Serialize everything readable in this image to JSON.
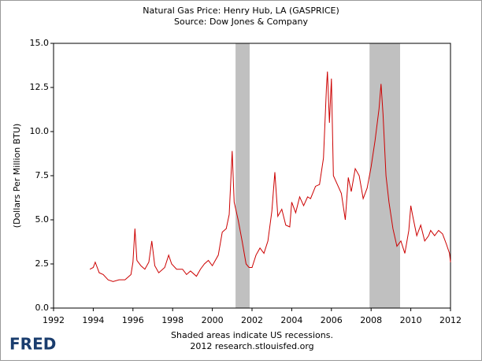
{
  "chart_data": {
    "type": "line",
    "title": "Natural Gas Price: Henry Hub, LA (GASPRICE)",
    "subtitle": "Source: Dow Jones & Company",
    "y_label": "(Dollars Per Million BTU)",
    "note": "Shaded areas indicate US recessions.",
    "credit": "2012 research.stlouisfed.org",
    "logo": "FRED",
    "recessions": [
      [
        2001.17,
        2001.88
      ],
      [
        2007.92,
        2009.46
      ]
    ],
    "recession_color": "#c0c0c0",
    "xlim": [
      1992,
      2012
    ],
    "xticks": [
      1992,
      1994,
      1996,
      1998,
      2000,
      2002,
      2004,
      2006,
      2008,
      2010,
      2012
    ],
    "ylim": [
      0,
      15
    ],
    "yticks": [
      {
        "value": 0,
        "label": "0.0"
      },
      {
        "value": 2.5,
        "label": "2.5"
      },
      {
        "value": 5,
        "label": "5.0"
      },
      {
        "value": 7.5,
        "label": "7.5"
      },
      {
        "value": 10,
        "label": "10.0"
      },
      {
        "value": 12.5,
        "label": "12.5"
      },
      {
        "value": 15,
        "label": "15.0"
      }
    ],
    "grid": false,
    "x": [
      1993.83,
      1994.0,
      1994.1,
      1994.3,
      1994.5,
      1994.75,
      1995.0,
      1995.3,
      1995.6,
      1995.9,
      1996.0,
      1996.1,
      1996.2,
      1996.4,
      1996.6,
      1996.8,
      1996.95,
      1997.1,
      1997.3,
      1997.6,
      1997.8,
      1997.95,
      1998.2,
      1998.5,
      1998.7,
      1998.9,
      1999.2,
      1999.4,
      1999.6,
      1999.8,
      2000.0,
      2000.3,
      2000.5,
      2000.7,
      2000.85,
      2001.0,
      2001.1,
      2001.3,
      2001.5,
      2001.7,
      2001.85,
      2002.0,
      2002.2,
      2002.4,
      2002.6,
      2002.8,
      2003.0,
      2003.15,
      2003.3,
      2003.5,
      2003.7,
      2003.9,
      2004.0,
      2004.2,
      2004.4,
      2004.6,
      2004.8,
      2004.95,
      2005.2,
      2005.4,
      2005.6,
      2005.75,
      2005.8,
      2005.9,
      2006.0,
      2006.1,
      2006.3,
      2006.5,
      2006.7,
      2006.85,
      2007.0,
      2007.2,
      2007.4,
      2007.6,
      2007.8,
      2008.0,
      2008.2,
      2008.4,
      2008.5,
      2008.6,
      2008.75,
      2008.9,
      2009.1,
      2009.3,
      2009.5,
      2009.7,
      2009.9,
      2010.0,
      2010.1,
      2010.3,
      2010.5,
      2010.7,
      2010.9,
      2011.0,
      2011.2,
      2011.4,
      2011.6,
      2011.8,
      2011.95,
      2012.0
    ],
    "series": [
      {
        "name": "GASPRICE",
        "color": "#cc0000",
        "values": [
          2.2,
          2.3,
          2.6,
          2.0,
          1.9,
          1.6,
          1.5,
          1.6,
          1.6,
          1.9,
          2.6,
          4.5,
          2.7,
          2.4,
          2.2,
          2.6,
          3.8,
          2.4,
          2.0,
          2.3,
          3.0,
          2.5,
          2.2,
          2.2,
          1.9,
          2.1,
          1.8,
          2.2,
          2.5,
          2.7,
          2.4,
          3.0,
          4.3,
          4.5,
          5.3,
          8.9,
          6.0,
          5.0,
          3.8,
          2.5,
          2.3,
          2.3,
          3.0,
          3.4,
          3.1,
          3.8,
          5.5,
          7.7,
          5.2,
          5.6,
          4.7,
          4.6,
          6.0,
          5.4,
          6.3,
          5.8,
          6.3,
          6.2,
          6.9,
          7.0,
          8.5,
          12.5,
          13.4,
          10.5,
          13.0,
          7.5,
          7.0,
          6.5,
          5.0,
          7.4,
          6.6,
          7.9,
          7.5,
          6.2,
          6.8,
          8.0,
          9.5,
          11.3,
          12.7,
          11.0,
          7.5,
          6.0,
          4.5,
          3.5,
          3.8,
          3.1,
          4.4,
          5.8,
          5.2,
          4.1,
          4.7,
          3.8,
          4.1,
          4.4,
          4.1,
          4.4,
          4.2,
          3.6,
          3.1,
          2.6
        ]
      }
    ]
  }
}
